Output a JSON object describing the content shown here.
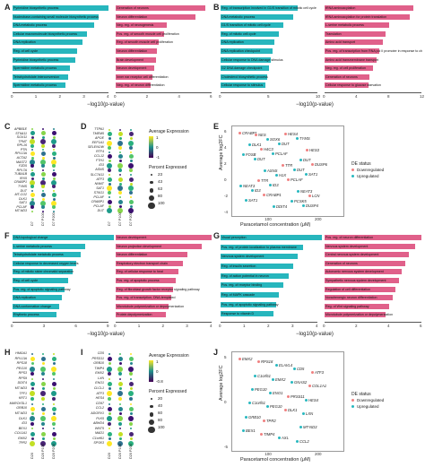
{
  "colors": {
    "teal": "#27b6bd",
    "pink": "#e0608a",
    "down": "#f08080",
    "up": "#28b8bf"
  },
  "panels": {
    "A": {
      "letter": "A",
      "xlabel": "−log10(p-value)",
      "left": {
        "bars": [
          {
            "label": "Pyrimidine biosynthetic process",
            "v": 4
          },
          {
            "label": "Nucleobase-containing small molecule biosynthetic process",
            "v": 3.6
          },
          {
            "label": "DNA metabolic process",
            "v": 3.4
          },
          {
            "label": "Cellular macromolecule biosynthetic process",
            "v": 3.1
          },
          {
            "label": "DNA replication",
            "v": 2.9
          },
          {
            "label": "Reg. of cell cycle",
            "v": 2.7
          },
          {
            "label": "Pyrimidine biosynthetic process",
            "v": 2.6
          },
          {
            "label": "Spermidine metabolic process",
            "v": 2.4
          },
          {
            "label": "Tetrahydrofolate interconversion",
            "v": 2.3
          },
          {
            "label": "Spermidine metabolic process",
            "v": 2.2
          }
        ],
        "ticks": [
          "0",
          "1",
          "2",
          "3",
          "4"
        ]
      },
      "right": {
        "bars": [
          {
            "label": "Generation of neurons",
            "v": 5.6
          },
          {
            "label": "Neuron differentiation",
            "v": 5.0
          },
          {
            "label": "Neg. reg. of neurogenesis",
            "v": 3.2
          },
          {
            "label": "Pos. reg. of smooth muscle cell proliferation",
            "v": 3.0
          },
          {
            "label": "Reg. of smooth muscle cell proliferation",
            "v": 2.7
          },
          {
            "label": "Neuron differentiation",
            "v": 2.6
          },
          {
            "label": "Brain development",
            "v": 2.5
          },
          {
            "label": "Neuron development",
            "v": 2.4
          },
          {
            "label": "Inner ear receptor cell differentiation",
            "v": 2.3
          },
          {
            "label": "Neg. reg. of neuron differentiation",
            "v": 2.2
          }
        ],
        "ticks": [
          "0",
          "2",
          "4",
          "6"
        ]
      }
    },
    "B": {
      "letter": "B",
      "xlabel": "−log10(p-value)",
      "left": {
        "bars": [
          {
            "label": "Reg. of transcription involved in G1/S transition of mitotic cell cycle",
            "v": 8.0
          },
          {
            "label": "DNA metabolic process",
            "v": 7.5
          },
          {
            "label": "G1/S transition of mitotic cell cycle",
            "v": 6.5
          },
          {
            "label": "Reg. of mitotic cell cycle",
            "v": 6.0
          },
          {
            "label": "DNA replication",
            "v": 5.6
          },
          {
            "label": "DNA replication checkpoint",
            "v": 5.4
          },
          {
            "label": "Cellular response to DNA damage stimulus",
            "v": 5.2
          },
          {
            "label": "G2 DNA damage checkpoint",
            "v": 5.0
          },
          {
            "label": "Cholesterol biosynthetic process",
            "v": 4.8
          },
          {
            "label": "Cellular response to stimulus",
            "v": 4.6
          }
        ],
        "ticks": [
          "0",
          "5",
          "10"
        ]
      },
      "right": {
        "bars": [
          {
            "label": "tRNA aminoacylation",
            "v": 11
          },
          {
            "label": "tRNA aminoacylation for protein translation",
            "v": 10.5
          },
          {
            "label": "L-serine metabolic process",
            "v": 8
          },
          {
            "label": "Translation",
            "v": 7.6
          },
          {
            "label": "Amino acid transport",
            "v": 7.2
          },
          {
            "label": "Pos. reg. of transcription from RNA pol II promoter in response to chemical stimulus",
            "v": 6.8
          },
          {
            "label": "Amino acid transmembrane transport",
            "v": 6.4
          },
          {
            "label": "Neg. reg. of cell proliferation",
            "v": 6.0
          },
          {
            "label": "Generation of neurons",
            "v": 5.6
          },
          {
            "label": "Cellular response to glucose starvation",
            "v": 5.4
          }
        ],
        "ticks": [
          "0",
          "4",
          "8",
          "12"
        ]
      }
    },
    "C": {
      "letter": "C",
      "genes": [
        "APBB1E",
        "ST6A11",
        "SOX11",
        "TFMT",
        "RPL16",
        "PTN",
        "RPL13A",
        "ACTA2",
        "MAST2",
        "FZD5",
        "RPL7A",
        "TUBA1B",
        "IRX5",
        "CRABP1",
        "TYMS",
        "DUT",
        "MT-CO2",
        "DLK1",
        "SAT1",
        "PCLAF",
        "MT-ND3"
      ],
      "cats": [
        "D7",
        "D7 P100",
        "D7 P200"
      ]
    },
    "D": {
      "letter": "D",
      "genes": [
        "TTPA1",
        "TMEM5",
        "APOE",
        "EEF1A1",
        "SELENOW",
        "RTF4",
        "CCL12",
        "FTH1",
        "ID3",
        "ASNS",
        "SLC7A11",
        "ATF3",
        "NNMT",
        "SAT1",
        "ST6G1",
        "PCLAF",
        "CRABP1",
        "PCLAF",
        "DUT"
      ],
      "cats": [
        "D7",
        "D7 P100",
        "D7 P200"
      ],
      "legend": {
        "expr_title": "Average Expression",
        "expr_ticks": [
          "1",
          "0",
          "-1"
        ],
        "pct_title": "Percent Expressed",
        "pct_vals": [
          "23",
          "43",
          "63",
          "80",
          "100"
        ]
      }
    },
    "E": {
      "letter": "E",
      "ylabel": "Average log2FC",
      "xlabel": "Paracetamol concentration (μM)",
      "x_ticks": [
        "100",
        "200"
      ],
      "y_ticks": [
        "6",
        "4",
        "2",
        "0",
        "-2",
        "-4"
      ],
      "legend": {
        "title": "DE status",
        "items": [
          "Downregulated",
          "Upregulated"
        ]
      },
      "labels": [
        "CRABP1",
        "PCLAF",
        "SAT1",
        "CRABP1",
        "TYMS",
        "DUT",
        "PCLAF",
        "SAT1",
        "DUT",
        "DUSP6",
        "ID3",
        "DUSP4",
        "H4C3",
        "DUT",
        "ID3",
        "HES4",
        "FOSB",
        "H1X",
        "LCN",
        "SOX6",
        "DUT",
        "TTR",
        "PCSK5",
        "DLK1",
        "TTR",
        "NEAT3",
        "DDIT4",
        "HES3",
        "ASNS",
        "NEAT3",
        "NES"
      ]
    },
    "F": {
      "letter": "F",
      "xlabel": "−log10(p-value)",
      "left": {
        "bars": [
          {
            "label": "DNA topological change",
            "v": 9.5
          },
          {
            "label": "L-serine metabolic process",
            "v": 6.8
          },
          {
            "label": "Tetrahydrofolate metabolic process",
            "v": 6.4
          },
          {
            "label": "Cellular response to decreased oxygen levels",
            "v": 6.0
          },
          {
            "label": "Reg. of mitotic sister chromatid separation",
            "v": 5.6
          },
          {
            "label": "Reg. of cell cycle",
            "v": 5.2
          },
          {
            "label": "Pos. reg. of apoptotic signaling pathway",
            "v": 4.9
          },
          {
            "label": "DNA replication",
            "v": 4.6
          },
          {
            "label": "DNA conformation change",
            "v": 4.4
          },
          {
            "label": "Rhythmic process",
            "v": 4.1
          }
        ],
        "ticks": [
          "0",
          "3",
          "6",
          "9"
        ]
      },
      "right": {
        "bars": [
          {
            "label": "Neuron development",
            "v": 4.0
          },
          {
            "label": "Neuron projection development",
            "v": 3.6
          },
          {
            "label": "Neuron differentiation",
            "v": 3.0
          },
          {
            "label": "Respiratory electron transport chain",
            "v": 2.8
          },
          {
            "label": "Reg. of cellular response to heat",
            "v": 2.6
          },
          {
            "label": "Pos. reg. of apoptotic process",
            "v": 2.5
          },
          {
            "label": "Reg. of fibroblast growth factor receptor signaling pathway",
            "v": 2.4
          },
          {
            "label": "Pos. reg. of transcription, DNA-templated",
            "v": 2.3
          },
          {
            "label": "Microtubule polymerization or depolymerization",
            "v": 2.2
          },
          {
            "label": "Protein depolymerization",
            "v": 2.1
          }
        ],
        "ticks": [
          "0",
          "1",
          "2",
          "3",
          "4"
        ]
      }
    },
    "G": {
      "letter": "G",
      "xlabel": "−log10(p-value)",
      "left": {
        "bars": [
          {
            "label": "Visual perception",
            "v": 4.2
          },
          {
            "label": "Pos. reg. of protein localization to plasma membrane",
            "v": 3.4
          },
          {
            "label": "Nervous system development",
            "v": 3.2
          },
          {
            "label": "Reg. of insulin secretion",
            "v": 3.0
          },
          {
            "label": "Reg. of action potential in neuron",
            "v": 2.8
          },
          {
            "label": "Pos. reg. of receptor binding",
            "v": 2.6
          },
          {
            "label": "Reg. of MAPK cascade",
            "v": 2.4
          },
          {
            "label": "Pos. reg. of apoptotic signaling pathway",
            "v": 2.3
          },
          {
            "label": "Response to vitamin D",
            "v": 2.2
          }
        ],
        "ticks": [
          "0",
          "1",
          "2",
          "3",
          "4"
        ]
      },
      "right": {
        "bars": [
          {
            "label": "Pos. reg. of neuron differentiation",
            "v": 6.0
          },
          {
            "label": "Nervous system development",
            "v": 5.6
          },
          {
            "label": "Central nervous system development",
            "v": 5.2
          },
          {
            "label": "Generation of neurons",
            "v": 5.0
          },
          {
            "label": "Autonomic nervous system development",
            "v": 4.8
          },
          {
            "label": "Sympathetic nervous system development",
            "v": 4.6
          },
          {
            "label": "Regulation of cell differentiation",
            "v": 4.4
          },
          {
            "label": "Noradrenergic neuron differentiation",
            "v": 4.2
          },
          {
            "label": "Reg. of Wnt signaling pathway",
            "v": 4.0
          },
          {
            "label": "Microtubule polymerization or depolymerization",
            "v": 3.8
          }
        ],
        "ticks": [
          "0",
          "2",
          "4",
          "6"
        ]
      }
    },
    "H": {
      "letter": "H",
      "genes": [
        "HMGA1",
        "RPL13A",
        "RPS18",
        "PEG10",
        "RPS3",
        "RPS9",
        "DDIT4",
        "MT-ND3",
        "TFF1",
        "KRT1",
        "MARCKSL1",
        "GRB10",
        "MT-ND3",
        "DLK1",
        "ID3",
        "BEX1",
        "COL1A1",
        "EMX2",
        "TPR2"
      ],
      "cats": [
        "D20",
        "D20 P100",
        "D20 P200"
      ]
    },
    "I": {
      "letter": "I",
      "genes": [
        "CD5",
        "PRSS11",
        "GRB10",
        "TIMP4",
        "EMX2",
        "LXN",
        "ENO1",
        "CLCL1",
        "ATF3",
        "HES4",
        "CD97",
        "CCL2",
        "ADGRV1",
        "PLK5",
        "ABHD4",
        "WNT5",
        "MAD1",
        "C1orf61",
        "SPSK3"
      ],
      "cats": [
        "D20",
        "D20 P100",
        "D20 P200"
      ],
      "legend": {
        "expr_title": "Average Expression",
        "expr_ticks": [
          "1",
          "0",
          "-0.8"
        ],
        "pct_title": "Percent Expressed",
        "pct_vals": [
          "20",
          "40",
          "60",
          "80",
          "100"
        ]
      }
    },
    "J": {
      "letter": "J",
      "ylabel": "Average log2FC",
      "xlabel": "Paracetamol concentration (μM)",
      "x_ticks": [
        "100",
        "200"
      ],
      "y_ticks": [
        "5",
        "0",
        "-5"
      ],
      "legend": {
        "title": "DE status",
        "items": [
          "Downregulated",
          "Upregulated"
        ]
      },
      "labels": [
        "EMX2",
        "EMX2",
        "HES4",
        "TPR2",
        "CCL2",
        "C1orf61",
        "PRSS11",
        "GRB10",
        "AXL",
        "ATF3",
        "ENO1",
        "LXN",
        "TIMP4",
        "CD5",
        "PEG10",
        "DLK1",
        "BEX1",
        "ELAVL4",
        "COL1A1",
        "PEG10",
        "MT-ND3",
        "RPS18",
        "GNAS2",
        "C1orf61"
      ]
    }
  }
}
